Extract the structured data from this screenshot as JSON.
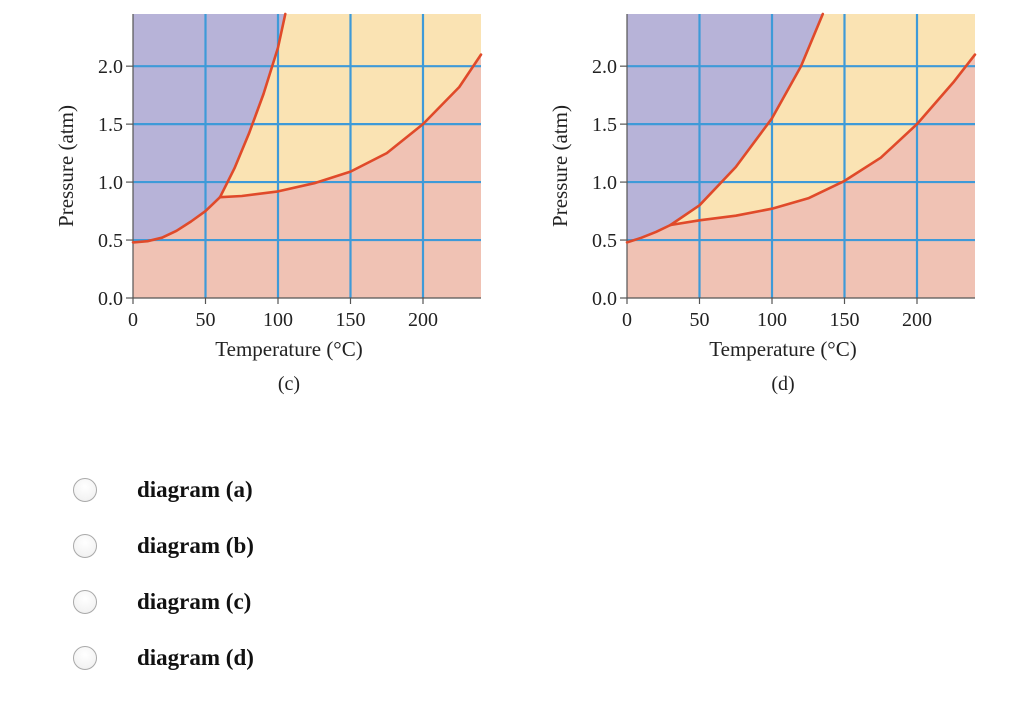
{
  "chart_data": [
    {
      "type": "phase-diagram",
      "caption": "(c)",
      "xlabel": "Temperature (°C)",
      "ylabel": "Pressure (atm)",
      "xlim": [
        0,
        240
      ],
      "ylim": [
        0,
        2.45
      ],
      "x_ticks": [
        "0",
        "50",
        "100",
        "150",
        "200"
      ],
      "x_tick_values": [
        0,
        50,
        100,
        150,
        200
      ],
      "y_ticks": [
        "0.0",
        "0.5",
        "1.0",
        "1.5",
        "2.0"
      ],
      "y_tick_values": [
        0,
        0.5,
        1.0,
        1.5,
        2.0
      ],
      "grid": true,
      "triple_point": [
        60,
        0.87
      ],
      "colors": {
        "solid": "#b7b3d8",
        "liquid": "#fae3b3",
        "gas": "#f0c2b4",
        "curve": "#e04a2a",
        "grid": "#3e9ad8"
      },
      "series": [
        {
          "curve": "sublimation",
          "x": [
            0,
            10,
            20,
            30,
            40,
            50,
            60
          ],
          "y": [
            0.48,
            0.49,
            0.52,
            0.58,
            0.66,
            0.75,
            0.87
          ]
        },
        {
          "curve": "melting",
          "x": [
            60,
            70,
            80,
            90,
            100,
            105
          ],
          "y": [
            0.87,
            1.12,
            1.42,
            1.76,
            2.16,
            2.45
          ]
        },
        {
          "curve": "vaporization",
          "x": [
            60,
            75,
            100,
            125,
            150,
            175,
            200,
            225,
            240
          ],
          "y": [
            0.87,
            0.88,
            0.92,
            0.99,
            1.09,
            1.25,
            1.5,
            1.82,
            2.1
          ]
        }
      ]
    },
    {
      "type": "phase-diagram",
      "caption": "(d)",
      "xlabel": "Temperature (°C)",
      "ylabel": "Pressure (atm)",
      "xlim": [
        0,
        240
      ],
      "ylim": [
        0,
        2.45
      ],
      "x_ticks": [
        "0",
        "50",
        "100",
        "150",
        "200"
      ],
      "x_tick_values": [
        0,
        50,
        100,
        150,
        200
      ],
      "y_ticks": [
        "0.0",
        "0.5",
        "1.0",
        "1.5",
        "2.0"
      ],
      "y_tick_values": [
        0,
        0.5,
        1.0,
        1.5,
        2.0
      ],
      "grid": true,
      "triple_point": [
        30,
        0.63
      ],
      "colors": {
        "solid": "#b7b3d8",
        "liquid": "#fae3b3",
        "gas": "#f0c2b4",
        "curve": "#e04a2a",
        "grid": "#3e9ad8"
      },
      "series": [
        {
          "curve": "sublimation",
          "x": [
            0,
            10,
            20,
            30
          ],
          "y": [
            0.48,
            0.52,
            0.57,
            0.63
          ]
        },
        {
          "curve": "melting",
          "x": [
            30,
            50,
            75,
            100,
            120,
            135
          ],
          "y": [
            0.63,
            0.8,
            1.13,
            1.55,
            2.0,
            2.45
          ]
        },
        {
          "curve": "vaporization",
          "x": [
            30,
            50,
            75,
            100,
            125,
            150,
            175,
            200,
            225,
            240
          ],
          "y": [
            0.63,
            0.67,
            0.71,
            0.77,
            0.86,
            1.01,
            1.21,
            1.5,
            1.86,
            2.1
          ]
        }
      ]
    }
  ],
  "question": {
    "options": [
      "diagram (a)",
      "diagram (b)",
      "diagram (c)",
      "diagram (d)"
    ]
  }
}
